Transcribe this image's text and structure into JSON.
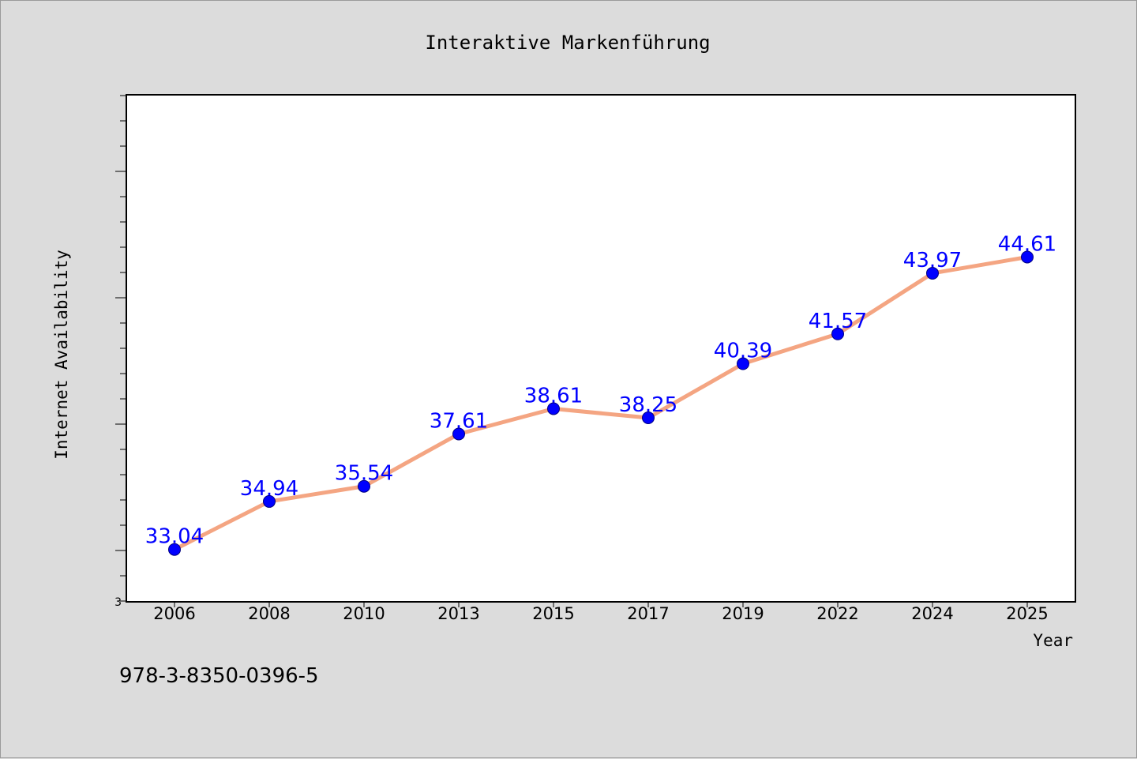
{
  "footer": {
    "isbn": "978-3-8350-0396-5"
  },
  "colors": {
    "background": "#dcdcdc",
    "plot_background": "#ffffff",
    "line": "#f4a582",
    "marker": "#0000ff",
    "label": "#0000ff"
  },
  "chart_data": {
    "type": "line",
    "title": "Interaktive Markenführung",
    "xlabel": "Year",
    "ylabel": "Internet Availability",
    "categories": [
      "2006",
      "2008",
      "2010",
      "2013",
      "2015",
      "2017",
      "2019",
      "2022",
      "2024",
      "2025"
    ],
    "series": [
      {
        "values": [
          33.04,
          34.94,
          35.54,
          37.61,
          38.61,
          38.25,
          40.39,
          41.57,
          43.97,
          44.61
        ],
        "labels": [
          "33.04",
          "34.94",
          "35.54",
          "37.61",
          "38.61",
          "38.25",
          "40.39",
          "41.57",
          "43.97",
          "44.61"
        ]
      }
    ],
    "ylim": [
      31,
      51
    ],
    "y_tick_label": "3",
    "grid": false,
    "legend": "none"
  }
}
